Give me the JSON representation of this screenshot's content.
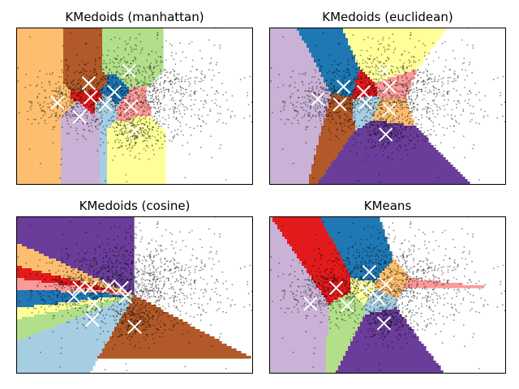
{
  "chart_data": [
    {
      "type": "scatter",
      "title": "KMedoids (manhattan)",
      "xlim": [
        -3.2,
        3.2
      ],
      "ylim": [
        -2.2,
        2.2
      ],
      "axes_visible": false,
      "background": "partition regions colored by nearest medoid",
      "medoids": [
        {
          "x": -2.1,
          "y": 0.1,
          "region_color": "#fdbf6f"
        },
        {
          "x": -1.25,
          "y": 0.65,
          "region_color": "#b15928"
        },
        {
          "x": -1.2,
          "y": 0.25,
          "region_color": "#e31a1c"
        },
        {
          "x": -0.8,
          "y": 0.05,
          "region_color": "#a6cee3"
        },
        {
          "x": -0.55,
          "y": 0.4,
          "region_color": "#1f78b4"
        },
        {
          "x": -0.1,
          "y": 0.0,
          "region_color": "#fb9a99"
        },
        {
          "x": 0.0,
          "y": -0.7,
          "region_color": "#ffff99"
        },
        {
          "x": -0.15,
          "y": 1.0,
          "region_color": "#b2df8a"
        },
        {
          "x": 0.85,
          "y": 0.1,
          "region_color": "#6a3d9a"
        },
        {
          "x": -1.5,
          "y": -0.3,
          "region_color": "#cab2d6"
        }
      ]
    },
    {
      "type": "scatter",
      "title": "KMedoids (euclidean)",
      "xlim": [
        -3.2,
        3.2
      ],
      "ylim": [
        -2.2,
        2.2
      ],
      "axes_visible": false,
      "background": "partition regions colored by nearest medoid",
      "medoids": [
        {
          "x": -1.9,
          "y": 0.2,
          "region_color": "#cab2d6"
        },
        {
          "x": -1.2,
          "y": 0.55,
          "region_color": "#1f78b4"
        },
        {
          "x": -1.3,
          "y": 0.05,
          "region_color": "#b15928"
        },
        {
          "x": -0.65,
          "y": 0.4,
          "region_color": "#e31a1c"
        },
        {
          "x": -0.6,
          "y": 0.1,
          "region_color": "#a6cee3"
        },
        {
          "x": 0.05,
          "y": 0.55,
          "region_color": "#fb9a99"
        },
        {
          "x": -0.1,
          "y": 1.0,
          "region_color": "#ffff99"
        },
        {
          "x": 0.05,
          "y": -0.1,
          "region_color": "#fdbf6f"
        },
        {
          "x": 1.05,
          "y": 0.2,
          "region_color": "#b2df8a"
        },
        {
          "x": -0.05,
          "y": -0.8,
          "region_color": "#6a3d9a"
        }
      ]
    },
    {
      "type": "scatter",
      "title": "KMedoids (cosine)",
      "xlim": [
        -3.2,
        3.2
      ],
      "ylim": [
        -2.2,
        2.2
      ],
      "axes_visible": false,
      "background": "angular partition regions colored by nearest medoid",
      "medoids": [
        {
          "x": -1.5,
          "y": 0.2,
          "region_color": "#fb9a99"
        },
        {
          "x": -1.2,
          "y": 0.2,
          "region_color": "#e31a1c"
        },
        {
          "x": -1.65,
          "y": -0.05,
          "region_color": "#1f78b4"
        },
        {
          "x": -1.1,
          "y": -0.25,
          "region_color": "#b2df8a"
        },
        {
          "x": -1.15,
          "y": -0.7,
          "region_color": "#a6cee3"
        },
        {
          "x": -0.7,
          "y": 0.25,
          "region_color": "#fdbf6f"
        },
        {
          "x": -0.35,
          "y": 0.2,
          "region_color": "#6a3d9a"
        },
        {
          "x": -0.25,
          "y": -0.05,
          "region_color": "#ffff99"
        },
        {
          "x": 0.9,
          "y": 0.55,
          "region_color": "#cab2d6"
        },
        {
          "x": 0.0,
          "y": -0.9,
          "region_color": "#b15928"
        }
      ]
    },
    {
      "type": "scatter",
      "title": "KMeans",
      "xlim": [
        -3.2,
        3.2
      ],
      "ylim": [
        -2.2,
        2.2
      ],
      "axes_visible": false,
      "background": "Voronoi regions colored by nearest centroid",
      "medoids": [
        {
          "x": -2.1,
          "y": -0.25,
          "region_color": "#cab2d6"
        },
        {
          "x": -1.4,
          "y": 0.2,
          "region_color": "#e31a1c"
        },
        {
          "x": -1.1,
          "y": -0.3,
          "region_color": "#b2df8a"
        },
        {
          "x": -0.6,
          "y": 0.15,
          "region_color": "#ffff99"
        },
        {
          "x": -0.5,
          "y": 0.65,
          "region_color": "#1f78b4"
        },
        {
          "x": -0.05,
          "y": 0.3,
          "region_color": "#fdbf6f"
        },
        {
          "x": -0.25,
          "y": -0.1,
          "region_color": "#a6cee3"
        },
        {
          "x": -0.1,
          "y": -0.8,
          "region_color": "#6a3d9a"
        },
        {
          "x": 0.75,
          "y": -0.2,
          "region_color": "#fb9a99"
        },
        {
          "x": 0.9,
          "y": 1.1,
          "region_color": "#b15928"
        }
      ]
    }
  ]
}
